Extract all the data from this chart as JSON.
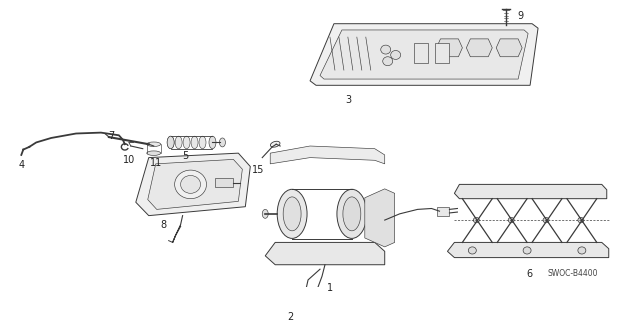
{
  "bg_color": "#ffffff",
  "line_color": "#3a3a3a",
  "fig_width": 6.4,
  "fig_height": 3.2,
  "dpi": 100,
  "watermark": "SWOC-B4400",
  "label_color": "#222222",
  "label_fontsize": 7
}
